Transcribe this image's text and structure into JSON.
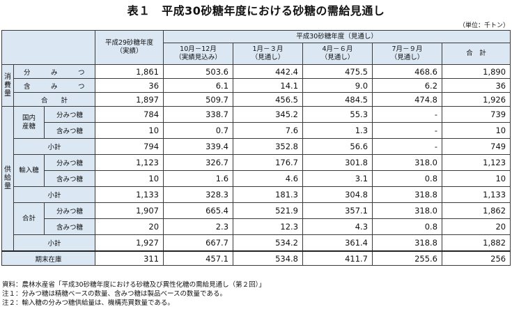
{
  "title": "表１　平成30砂糖年度における砂糖の需給見通し",
  "unit": "（単位：千トン）",
  "header": {
    "prev_year": "平成29砂糖年度\n（実績）",
    "forecast_group": "平成30砂糖年度（見通し）",
    "periods": [
      "10月－12月\n（実績見込み）",
      "1月－３月\n（見通し）",
      "4月－６月\n（見通し）",
      "7月－９月\n（見通し）",
      "合　計"
    ]
  },
  "consumption": {
    "label": "消\n費\n量",
    "rows": [
      {
        "label": "分　み　つ　糖",
        "values": [
          "1,861",
          "503.6",
          "442.4",
          "475.5",
          "468.6",
          "1,890"
        ]
      },
      {
        "label": "含　み　つ　糖",
        "values": [
          "36",
          "6.1",
          "14.1",
          "9.0",
          "6.2",
          "36"
        ]
      }
    ],
    "total": {
      "label": "合　　計",
      "values": [
        "1,897",
        "509.7",
        "456.5",
        "484.5",
        "474.8",
        "1,926"
      ]
    }
  },
  "supply": {
    "label": "供\n給\n量",
    "groups": [
      {
        "label": "国内\n産糖",
        "rows": [
          {
            "label": "分みつ糖",
            "values": [
              "784",
              "338.7",
              "345.2",
              "55.3",
              "-",
              "739"
            ]
          },
          {
            "label": "含みつ糖",
            "values": [
              "10",
              "0.7",
              "7.6",
              "1.3",
              "-",
              "10"
            ]
          },
          {
            "label": "小計",
            "values": [
              "794",
              "339.4",
              "352.8",
              "56.6",
              "-",
              "749"
            ]
          }
        ]
      },
      {
        "label": "輸入糖",
        "rows": [
          {
            "label": "分みつ糖",
            "values": [
              "1,123",
              "326.7",
              "176.7",
              "301.8",
              "318.0",
              "1,123"
            ]
          },
          {
            "label": "含みつ糖",
            "values": [
              "10",
              "1.6",
              "4.6",
              "3.1",
              "0.8",
              "10"
            ]
          },
          {
            "label": "小計",
            "values": [
              "1,133",
              "328.3",
              "181.3",
              "304.8",
              "318.8",
              "1,133"
            ]
          }
        ]
      },
      {
        "label": "合計",
        "rows": [
          {
            "label": "分みつ糖",
            "values": [
              "1,907",
              "665.4",
              "521.9",
              "357.1",
              "318.0",
              "1,862"
            ]
          },
          {
            "label": "含みつ糖",
            "values": [
              "20",
              "2.3",
              "12.3",
              "4.3",
              "0.8",
              "20"
            ]
          },
          {
            "label": "小計",
            "values": [
              "1,927",
              "667.7",
              "534.2",
              "361.4",
              "318.8",
              "1,882"
            ]
          }
        ]
      }
    ]
  },
  "ending_stock": {
    "label": "期末在庫",
    "values": [
      "311",
      "457.1",
      "534.8",
      "411.7",
      "255.6",
      "256"
    ]
  },
  "notes": [
    "資料：農林水産省「平成30砂糖年度における砂糖及び異性化糖の需給見通し（第２回）」",
    "注１：分みつ糖は精糖ベースの数量、含みつ糖は製品ベースの数量である。",
    "注２：輸入糖の分みつ糖供給量は、機構売買数量である。"
  ]
}
